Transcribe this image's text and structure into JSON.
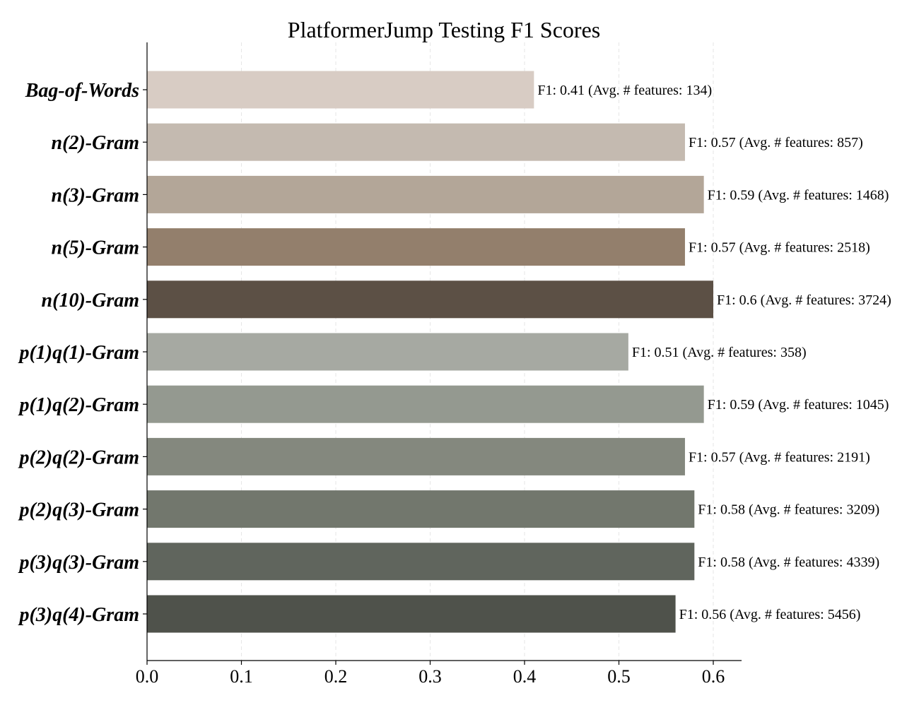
{
  "chart_data": {
    "type": "bar",
    "orientation": "horizontal",
    "title": "PlatformerJump Testing F1 Scores",
    "xlabel": "",
    "ylabel": "",
    "xlim": [
      0,
      0.63
    ],
    "xticks": [
      "0.0",
      "0.1",
      "0.2",
      "0.3",
      "0.4",
      "0.5",
      "0.6"
    ],
    "grid": "vertical dashed",
    "categories": [
      "Bag-of-Words",
      "n(2)-Gram",
      "n(3)-Gram",
      "n(5)-Gram",
      "n(10)-Gram",
      "p(1)q(1)-Gram",
      "p(1)q(2)-Gram",
      "p(2)q(2)-Gram",
      "p(2)q(3)-Gram",
      "p(3)q(3)-Gram",
      "p(3)q(4)-Gram"
    ],
    "values": [
      0.41,
      0.57,
      0.59,
      0.57,
      0.6,
      0.51,
      0.59,
      0.57,
      0.58,
      0.58,
      0.56
    ],
    "avg_features": [
      134,
      857,
      1468,
      2518,
      3724,
      358,
      1045,
      2191,
      3209,
      4339,
      5456
    ],
    "data_labels": [
      "F1: 0.41 (Avg. # features: 134)",
      "F1: 0.57 (Avg. # features: 857)",
      "F1: 0.59 (Avg. # features: 1468)",
      "F1: 0.57 (Avg. # features: 2518)",
      "F1: 0.6 (Avg. # features: 3724)",
      "F1: 0.51 (Avg. # features: 358)",
      "F1: 0.59 (Avg. # features: 1045)",
      "F1: 0.57 (Avg. # features: 2191)",
      "F1: 0.58 (Avg. # features: 3209)",
      "F1: 0.58 (Avg. # features: 4339)",
      "F1: 0.56 (Avg. # features: 5456)"
    ],
    "colors": [
      "#d8ccc4",
      "#c4bab0",
      "#b3a698",
      "#937f6c",
      "#5c5045",
      "#a6a9a2",
      "#949990",
      "#84887e",
      "#72776d",
      "#60655d",
      "#4f524b"
    ]
  }
}
